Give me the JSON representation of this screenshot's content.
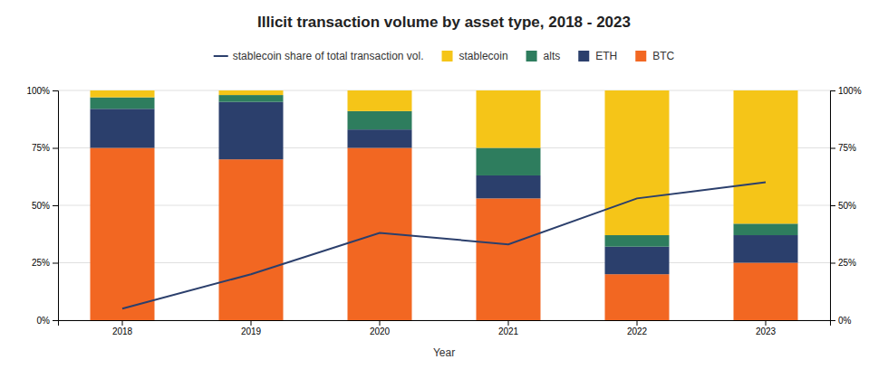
{
  "chart_data": {
    "type": "bar",
    "title": "Illicit transaction volume by asset type, 2018 - 2023",
    "x_label": "Year",
    "categories": [
      "2018",
      "2019",
      "2020",
      "2021",
      "2022",
      "2023"
    ],
    "stacked": true,
    "grid": true,
    "legend": "top",
    "series": [
      {
        "name": "BTC",
        "color": "#f26722",
        "values": [
          0.75,
          0.7,
          0.75,
          0.53,
          0.2,
          0.25
        ]
      },
      {
        "name": "ETH",
        "color": "#2b3f6c",
        "values": [
          0.17,
          0.25,
          0.08,
          0.1,
          0.12,
          0.12
        ]
      },
      {
        "name": "alts",
        "color": "#2e7d5e",
        "values": [
          0.05,
          0.03,
          0.08,
          0.12,
          0.05,
          0.05
        ]
      },
      {
        "name": "stablecoin",
        "color": "#f5c518",
        "values": [
          0.03,
          0.02,
          0.09,
          0.25,
          0.63,
          0.58
        ]
      },
      {
        "name": "stablecoin share of total transaction vol.",
        "type": "line",
        "axis": "y2",
        "color": "#2b3f6c",
        "values": [
          0.05,
          0.2,
          0.38,
          0.33,
          0.53,
          0.6
        ]
      }
    ],
    "ylim": [
      0,
      1.0
    ],
    "yticks": [
      {
        "value": 0,
        "label": "0%"
      },
      {
        "value": 0.25,
        "label": "25%"
      },
      {
        "value": 0.5,
        "label": "50%"
      },
      {
        "value": 0.75,
        "label": "75%"
      },
      {
        "value": 1.0,
        "label": "100%"
      }
    ],
    "y2lim": [
      0,
      1.0
    ],
    "y2ticks": [
      {
        "value": 0,
        "label": "0%"
      },
      {
        "value": 0.25,
        "label": "25%"
      },
      {
        "value": 0.5,
        "label": "50%"
      },
      {
        "value": 0.75,
        "label": "75%"
      },
      {
        "value": 1.0,
        "label": "100%"
      }
    ]
  }
}
